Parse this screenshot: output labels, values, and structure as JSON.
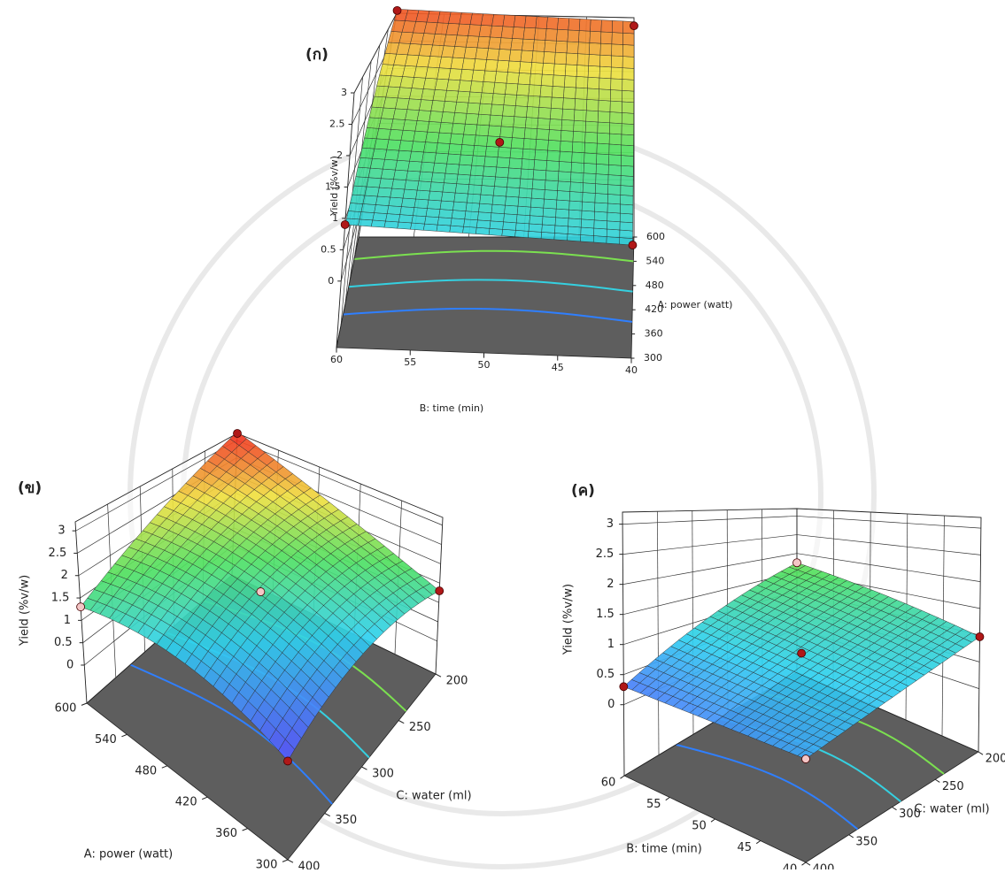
{
  "panels": [
    {
      "label": "(ก)",
      "z_axis": {
        "title": "Yield (%v/w)",
        "ticks": [
          0,
          0.5,
          1,
          1.5,
          2,
          2.5,
          3
        ]
      },
      "x_axis": {
        "title": "B: time (min)",
        "ticks": [
          60,
          55,
          50,
          45,
          40
        ]
      },
      "y_axis": {
        "title": "A: power (watt)",
        "ticks": [
          300,
          360,
          420,
          480,
          540,
          600
        ]
      }
    },
    {
      "label": "(ข)",
      "z_axis": {
        "title": "Yield (%v/w)",
        "ticks": [
          0,
          0.5,
          1,
          1.5,
          2,
          2.5,
          3
        ]
      },
      "x_axis": {
        "title": "A: power (watt)",
        "ticks": [
          600,
          540,
          480,
          420,
          360,
          300
        ]
      },
      "y_axis": {
        "title": "C: water (ml)",
        "ticks": [
          200,
          250,
          300,
          350,
          400
        ]
      }
    },
    {
      "label": "(ค)",
      "z_axis": {
        "title": "Yield (%v/w)",
        "ticks": [
          0,
          0.5,
          1,
          1.5,
          2,
          2.5,
          3
        ]
      },
      "x_axis": {
        "title": "B: time (min)",
        "ticks": [
          60,
          55,
          50,
          45,
          40
        ]
      },
      "y_axis": {
        "title": "C: water (ml)",
        "ticks": [
          200,
          250,
          300,
          350,
          400
        ]
      }
    }
  ]
}
